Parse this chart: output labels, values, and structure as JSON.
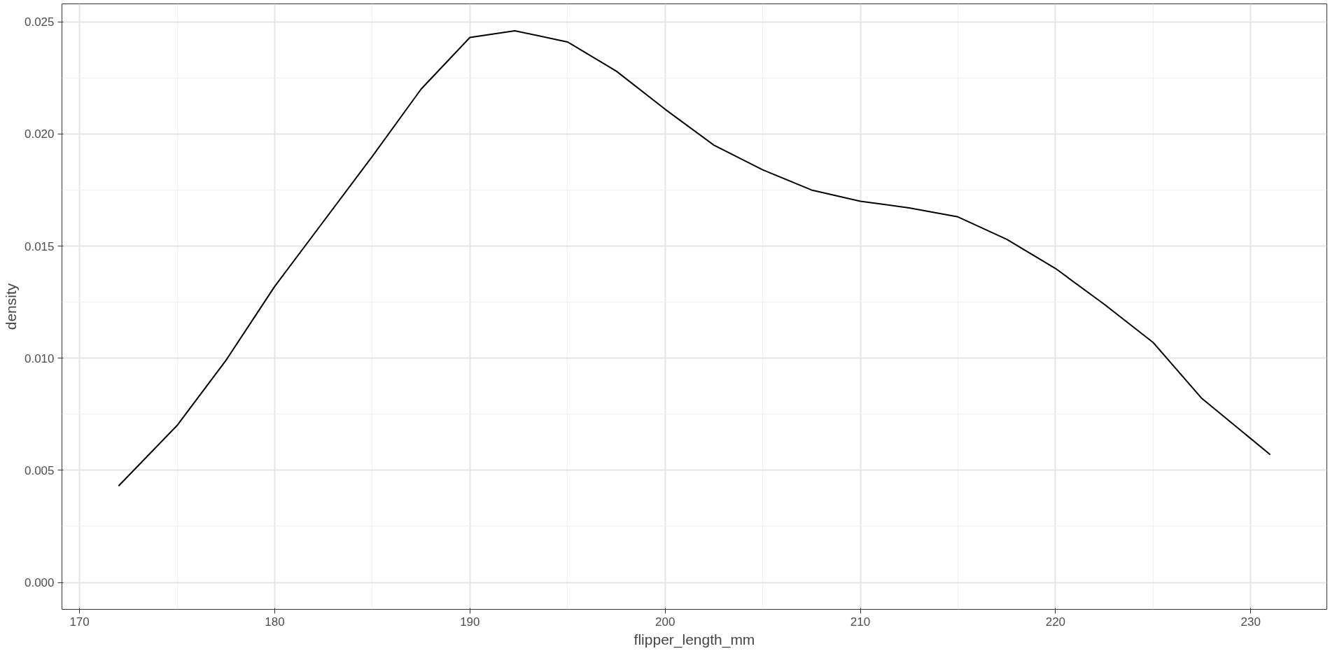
{
  "chart_data": {
    "type": "line",
    "xlabel": "flipper_length_mm",
    "ylabel": "density",
    "x": [
      172,
      175,
      177.5,
      180,
      182.5,
      185,
      187.5,
      190,
      192.3,
      195,
      197.5,
      200,
      202.5,
      205,
      207.5,
      210,
      212.5,
      215,
      217.5,
      220,
      222.5,
      225,
      227.5,
      231
    ],
    "series": [
      {
        "color": "#000000",
        "values": [
          0.0043,
          0.007,
          0.0099,
          0.0132,
          0.0161,
          0.019,
          0.022,
          0.0243,
          0.0246,
          0.0241,
          0.0228,
          0.0211,
          0.0195,
          0.0184,
          0.0175,
          0.017,
          0.0167,
          0.0163,
          0.0153,
          0.014,
          0.0124,
          0.0107,
          0.0082,
          0.0057
        ]
      }
    ],
    "xlim": [
      169.1,
      233.9
    ],
    "ylim": [
      -0.0012,
      0.0258
    ],
    "xticks": [
      170,
      180,
      190,
      200,
      210,
      220,
      230
    ],
    "yticks": [
      {
        "value": 0,
        "label": "0.000"
      },
      {
        "value": 0.005,
        "label": "0.005"
      },
      {
        "value": 0.01,
        "label": "0.010"
      },
      {
        "value": 0.015,
        "label": "0.015"
      },
      {
        "value": 0.02,
        "label": "0.020"
      },
      {
        "value": 0.025,
        "label": "0.025"
      }
    ],
    "grid": true,
    "marker": "none",
    "line_style": "solid"
  }
}
